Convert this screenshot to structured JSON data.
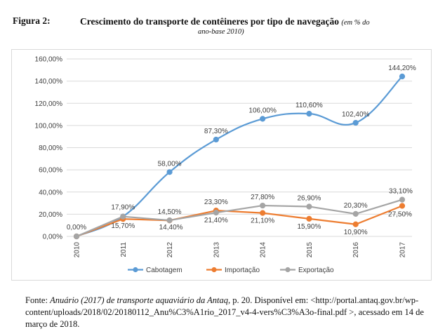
{
  "figure": {
    "label": "Figura 2:",
    "title": "Crescimento do transporte de contêineres por tipo de navegação",
    "note_part1": "(em % do",
    "note_part2": "ano-base 2010)"
  },
  "source": {
    "prefix": "Fonte: ",
    "title_italic": "Anuário (2017) de transporte aquaviário da Antaq",
    "text": ", p. 20. Disponível em: <http://portal.antaq.gov.br/wp-content/uploads/2018/02/20180112_Anu%C3%A1rio_2017_v4-4-vers%C3%A3o-final.pdf >, acessado em 14 de março de 2018."
  },
  "chart_data": {
    "type": "line",
    "categories": [
      "2010",
      "2011",
      "2012",
      "2013",
      "2014",
      "2015",
      "2016",
      "2017"
    ],
    "y_ticks": [
      "0,00%",
      "20,00%",
      "40,00%",
      "60,00%",
      "80,00%",
      "100,00%",
      "120,00%",
      "140,00%",
      "160,00%"
    ],
    "ylim": [
      0,
      160
    ],
    "grid": true,
    "legend_position": "bottom",
    "series": [
      {
        "name": "Cabotagem",
        "color": "#5b9bd5",
        "smooth": true,
        "values": [
          0,
          17.9,
          58,
          87.3,
          106,
          110.6,
          102.4,
          144.2
        ],
        "labels": [
          "0,00%",
          "17,90%",
          "58,00%",
          "87,30%",
          "106,00%",
          "110,60%",
          "102,40%",
          "144,20%"
        ]
      },
      {
        "name": "Importação",
        "color": "#ed7d31",
        "smooth": false,
        "values": [
          0,
          15.7,
          14.4,
          23.3,
          21.1,
          15.9,
          10.9,
          27.5
        ],
        "labels": [
          "",
          "15,70%",
          "14,40%",
          "23,30%",
          "21,10%",
          "15,90%",
          "10,90%",
          "27,50%"
        ]
      },
      {
        "name": "Exportação",
        "color": "#a5a5a5",
        "smooth": false,
        "values": [
          0,
          17.9,
          14.5,
          21.4,
          27.8,
          26.9,
          20.3,
          33.1
        ],
        "labels": [
          "",
          "",
          "14,50%",
          "21,40%",
          "27,80%",
          "26,90%",
          "20,30%",
          "33,10%"
        ]
      }
    ]
  }
}
